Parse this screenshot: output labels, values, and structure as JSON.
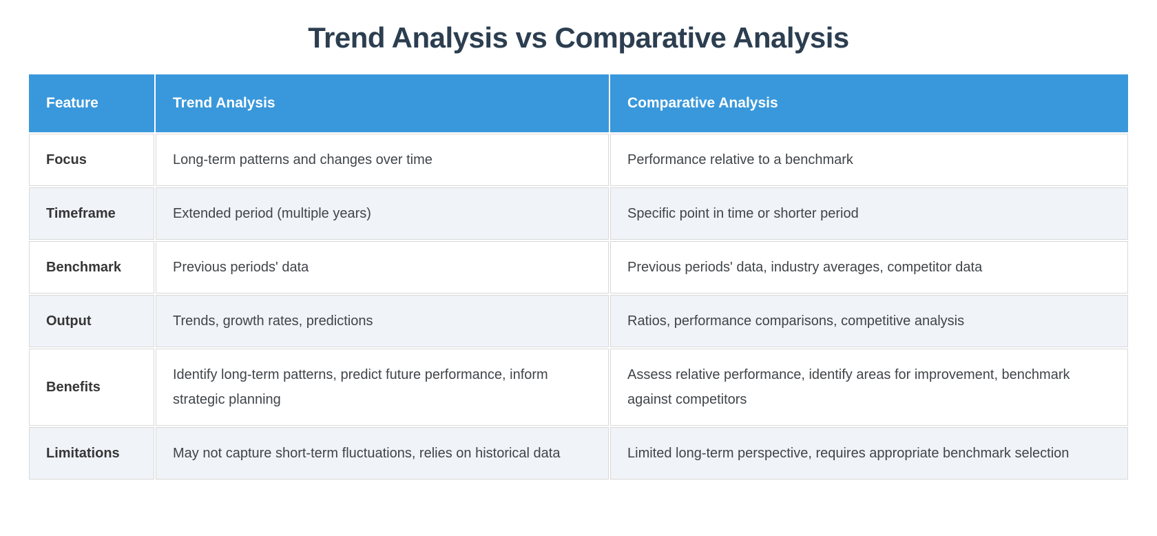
{
  "title": "Trend Analysis vs Comparative Analysis",
  "colors": {
    "title_text": "#2c3e50",
    "header_bg": "#3998db",
    "header_text": "#ffffff",
    "row_bg": "#ffffff",
    "row_alt_bg": "#f0f3f8",
    "cell_border": "#d8d8d8",
    "feature_text": "#363636",
    "body_text": "#404448"
  },
  "table": {
    "columns": [
      "Feature",
      "Trend Analysis",
      "Comparative Analysis"
    ],
    "rows": [
      {
        "feature": "Focus",
        "trend": "Long-term patterns and changes over time",
        "comparative": "Performance relative to a benchmark"
      },
      {
        "feature": "Timeframe",
        "trend": "Extended period (multiple years)",
        "comparative": "Specific point in time or shorter period"
      },
      {
        "feature": "Benchmark",
        "trend": "Previous periods' data",
        "comparative": "Previous periods' data, industry averages, competitor data"
      },
      {
        "feature": "Output",
        "trend": "Trends, growth rates, predictions",
        "comparative": "Ratios, performance comparisons, competitive analysis"
      },
      {
        "feature": "Benefits",
        "trend": "Identify long-term patterns, predict future performance, inform strategic planning",
        "comparative": "Assess relative performance, identify areas for improvement, benchmark against competitors"
      },
      {
        "feature": "Limitations",
        "trend": "May not capture short-term fluctuations, relies on historical data",
        "comparative": "Limited long-term perspective, requires appropriate benchmark selection"
      }
    ]
  }
}
